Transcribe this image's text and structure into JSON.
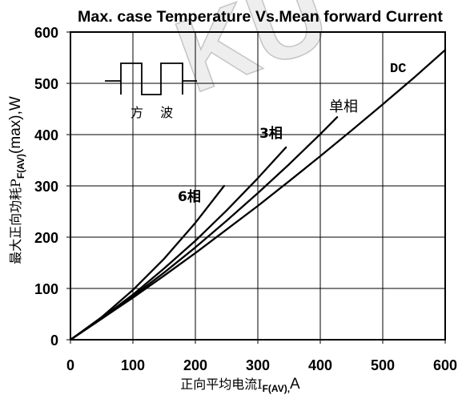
{
  "chart_data": {
    "type": "line",
    "title": "Max. case Temperature Vs.Mean forward Current",
    "xlabel": {
      "text": "正向平均电流I",
      "sub": "F(AV),",
      "unit": "A"
    },
    "ylabel": {
      "text": "最大正向功耗P",
      "sub": "F(AV)",
      "unit": "(max),W"
    },
    "xlim": [
      0,
      600
    ],
    "ylim": [
      0,
      600
    ],
    "xticks": [
      0,
      100,
      200,
      300,
      400,
      500,
      600
    ],
    "yticks": [
      0,
      100,
      200,
      300,
      400,
      500,
      600
    ],
    "grid": true,
    "series": [
      {
        "name": "DC",
        "x": [
          0,
          50,
          100,
          150,
          200,
          250,
          300,
          350,
          400,
          450,
          500,
          550,
          600
        ],
        "y": [
          0,
          41,
          82,
          125,
          169,
          215,
          261,
          309,
          358,
          408,
          459,
          511,
          565
        ]
      },
      {
        "name": "单相",
        "x": [
          0,
          50,
          100,
          150,
          200,
          250,
          300,
          350,
          400,
          427
        ],
        "y": [
          0,
          41,
          85,
          131,
          180,
          232,
          286,
          342,
          401,
          434
        ]
      },
      {
        "name": "3相",
        "x": [
          0,
          50,
          100,
          150,
          200,
          250,
          300,
          345
        ],
        "y": [
          0,
          42,
          88,
          139,
          193,
          252,
          315,
          375
        ]
      },
      {
        "name": "6相",
        "x": [
          0,
          50,
          100,
          150,
          200,
          246
        ],
        "y": [
          0,
          44,
          97,
          158,
          228,
          300
        ]
      }
    ],
    "inset": {
      "icon": "square-wave-icon",
      "label": "方 波"
    }
  },
  "colors": {
    "line": "#000000",
    "grid": "#000000",
    "background": "#ffffff",
    "watermark": "#9e9e9e"
  },
  "watermark": "KU"
}
